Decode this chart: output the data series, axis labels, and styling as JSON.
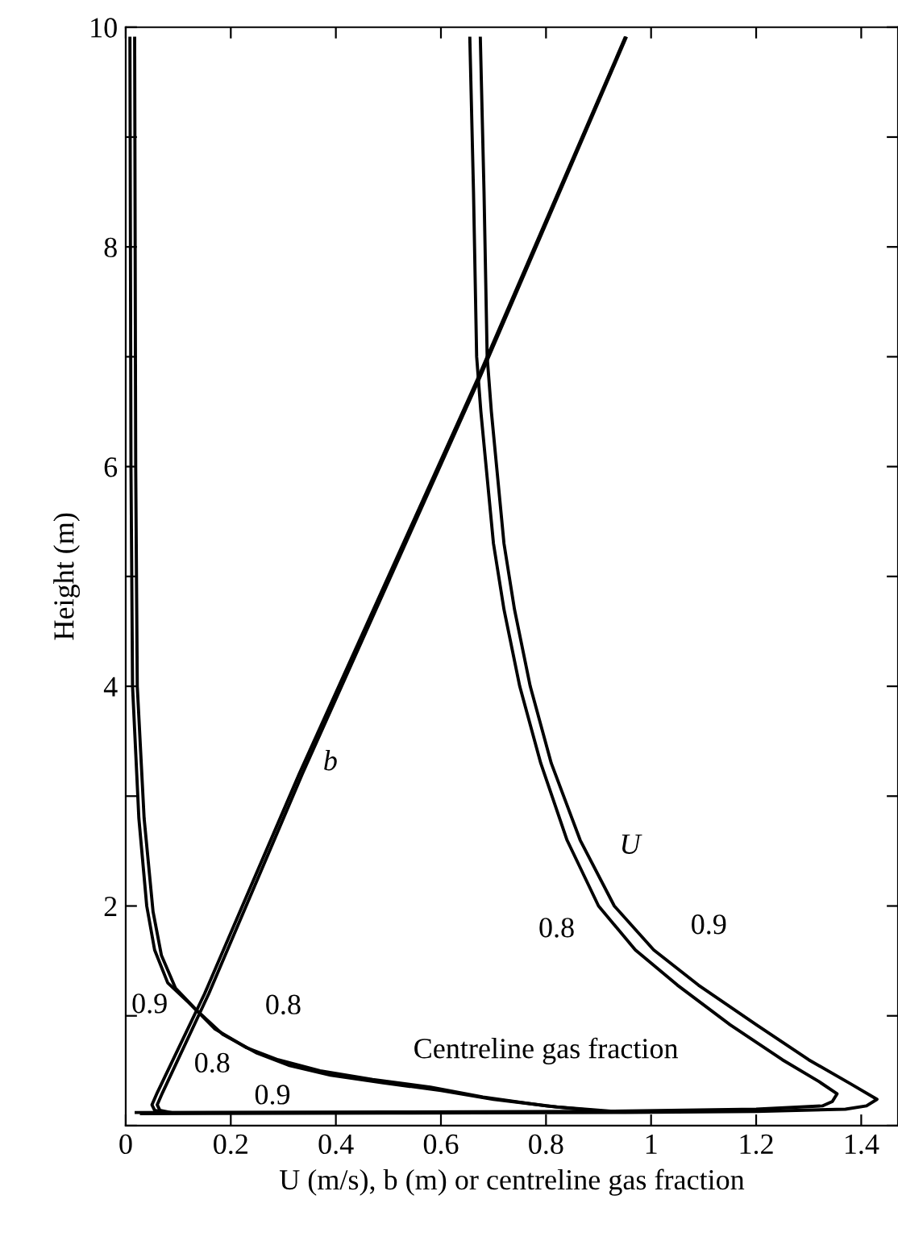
{
  "chart_data": {
    "type": "line",
    "xlabel": "U (m/s), b (m) or centreline gas fraction",
    "ylabel": "Height (m)",
    "xlim": [
      0,
      1.47
    ],
    "ylim": [
      0,
      10
    ],
    "xticks": [
      0,
      0.2,
      0.4,
      0.6,
      0.8,
      1,
      1.2,
      1.4
    ],
    "yticks": [
      {
        "value": 0,
        "label": null
      },
      {
        "value": 1,
        "label": null
      },
      2,
      {
        "value": 3,
        "label": null
      },
      4,
      {
        "value": 5,
        "label": null
      },
      6,
      {
        "value": 7,
        "label": null
      },
      8,
      {
        "value": 9,
        "label": null
      },
      10
    ],
    "grid": false,
    "legend": false,
    "line_style": "solid",
    "marker": "none",
    "series": [
      {
        "color": "#000000",
        "x": [
          0.655,
          0.662,
          0.668,
          0.676,
          0.686,
          0.7,
          0.72,
          0.75,
          0.79,
          0.84,
          0.9,
          0.97,
          1.05,
          1.15,
          1.25,
          1.32,
          1.354,
          1.345,
          1.326,
          1.2,
          0.9,
          0.5,
          0.02
        ],
        "values": [
          9.9,
          8.5,
          7,
          6.5,
          6,
          5.3,
          4.7,
          4,
          3.3,
          2.6,
          2,
          1.6,
          1.28,
          0.92,
          0.6,
          0.4,
          0.29,
          0.22,
          0.18,
          0.15,
          0.13,
          0.125,
          0.12
        ]
      },
      {
        "color": "#000000",
        "x": [
          0.675,
          0.682,
          0.688,
          0.696,
          0.706,
          0.72,
          0.74,
          0.77,
          0.81,
          0.865,
          0.93,
          1.005,
          1.09,
          1.2,
          1.3,
          1.38,
          1.43,
          1.41,
          1.37,
          1.2,
          0.95,
          0.5,
          0.03
        ],
        "values": [
          9.9,
          8.5,
          7,
          6.5,
          6,
          5.3,
          4.7,
          4,
          3.3,
          2.6,
          2,
          1.6,
          1.28,
          0.92,
          0.6,
          0.38,
          0.24,
          0.18,
          0.15,
          0.13,
          0.12,
          0.115,
          0.11
        ]
      },
      {
        "color": "#000000",
        "x": [
          0.075,
          0.055,
          0.05,
          0.06,
          0.15,
          0.33,
          0.67,
          0.95
        ],
        "values": [
          0.12,
          0.14,
          0.19,
          0.3,
          1.2,
          3.2,
          6.8,
          9.9
        ]
      },
      {
        "color": "#000000",
        "x": [
          0.085,
          0.065,
          0.06,
          0.07,
          0.158,
          0.336,
          0.673,
          0.952
        ],
        "values": [
          0.12,
          0.14,
          0.19,
          0.3,
          1.2,
          3.2,
          6.8,
          9.9
        ]
      },
      {
        "color": "#000000",
        "x": [
          0.91,
          0.8,
          0.68,
          0.58,
          0.47,
          0.37,
          0.29,
          0.23,
          0.17,
          0.12,
          0.08,
          0.055,
          0.04,
          0.025,
          0.013,
          0.01,
          0.008
        ],
        "values": [
          0.13,
          0.18,
          0.26,
          0.35,
          0.42,
          0.5,
          0.6,
          0.71,
          0.88,
          1.12,
          1.3,
          1.6,
          2,
          2.8,
          4,
          6,
          9.9
        ]
      },
      {
        "color": "#000000",
        "x": [
          0.93,
          0.82,
          0.7,
          0.6,
          0.49,
          0.39,
          0.31,
          0.25,
          0.185,
          0.135,
          0.095,
          0.068,
          0.052,
          0.035,
          0.022,
          0.019,
          0.017
        ],
        "values": [
          0.13,
          0.17,
          0.24,
          0.32,
          0.39,
          0.46,
          0.55,
          0.66,
          0.83,
          1.05,
          1.25,
          1.55,
          1.95,
          2.8,
          4,
          6,
          9.9
        ]
      }
    ],
    "annotations": [
      "b",
      "U",
      "0.8",
      "0.9",
      "0.9",
      "0.8",
      "0.8",
      "0.9",
      "Centreline gas fraction"
    ]
  }
}
